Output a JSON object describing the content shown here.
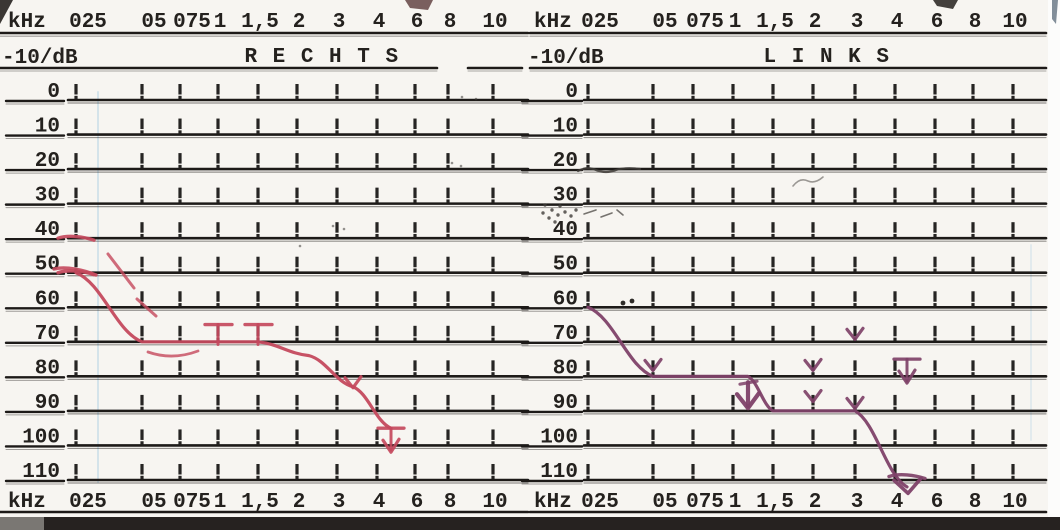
{
  "scan": {
    "form_header": {
      "freq_unit": "kHz",
      "db_unit": "-10/dB",
      "frequencies_khz_labels": [
        "025",
        "05",
        "075",
        "1",
        "1,5",
        "2",
        "3",
        "4",
        "6",
        "8",
        "10"
      ],
      "db_row_labels": [
        "0",
        "10",
        "20",
        "30",
        "40",
        "50",
        "60",
        "70",
        "80",
        "90",
        "100",
        "110"
      ]
    },
    "panels": [
      {
        "id": "rechts",
        "title": "R E C H T S"
      },
      {
        "id": "links",
        "title": "L I N K S"
      }
    ]
  },
  "colors": {
    "ink": "#1d1a18",
    "rechts_curve": "#c4495d",
    "links_curve": "#7e4168",
    "scan_line_blue": "#9cc8e0",
    "smudge": "#3f3c38",
    "paper": "#f7f5f1"
  },
  "chart_data": [
    {
      "type": "line",
      "panel": "RECHTS",
      "ear": "right",
      "xlabel": "kHz",
      "ylabel": "-10/dB",
      "x_ticklabels": [
        "025",
        "05",
        "075",
        "1",
        "1,5",
        "2",
        "3",
        "4",
        "6",
        "8",
        "10"
      ],
      "x_khz": [
        0.25,
        0.5,
        0.75,
        1,
        1.5,
        2,
        3,
        4
      ],
      "threshold_db": [
        50,
        70,
        70,
        70,
        70,
        74,
        83,
        95
      ],
      "ylim": [
        0,
        110
      ],
      "y_step_db": 10,
      "no_response_above_khz": 4,
      "marks": [
        {
          "khz": 0.25,
          "db": 40,
          "type": "dash"
        },
        {
          "khz": 0.25,
          "db": 50,
          "type": "dash"
        },
        {
          "khz": 1,
          "db": 65,
          "type": "tbar"
        },
        {
          "khz": 1.5,
          "db": 65,
          "type": "tbar"
        },
        {
          "khz": 3,
          "db": 83,
          "type": "arrow"
        },
        {
          "khz": 4,
          "db": 95,
          "type": "tbar-arrow"
        }
      ]
    },
    {
      "type": "line",
      "panel": "LINKS",
      "ear": "left",
      "xlabel": "kHz",
      "ylabel": "-10/dB",
      "x_ticklabels": [
        "025",
        "05",
        "075",
        "1",
        "1,5",
        "2",
        "3",
        "4",
        "6",
        "8",
        "10"
      ],
      "x_khz": [
        0.25,
        0.5,
        0.75,
        1,
        1.5,
        2,
        3,
        4
      ],
      "threshold_db": [
        60,
        80,
        80,
        80,
        90,
        90,
        90,
        110
      ],
      "ylim": [
        0,
        110
      ],
      "y_step_db": 10,
      "no_response_above_khz": 4,
      "marks": [
        {
          "khz": 0.5,
          "db": 78,
          "type": "arrow"
        },
        {
          "khz": 1,
          "db": 84,
          "type": "arrow-large"
        },
        {
          "khz": 2,
          "db": 78,
          "type": "arrow"
        },
        {
          "khz": 2,
          "db": 87,
          "type": "arrow"
        },
        {
          "khz": 3,
          "db": 69,
          "type": "arrow"
        },
        {
          "khz": 3,
          "db": 89,
          "type": "arrow"
        },
        {
          "khz": 4,
          "db": 75,
          "type": "tbar-arrow"
        },
        {
          "khz": 4,
          "db": 109,
          "type": "dash"
        },
        {
          "khz": 4,
          "db": 113,
          "type": "noresp"
        }
      ]
    }
  ]
}
